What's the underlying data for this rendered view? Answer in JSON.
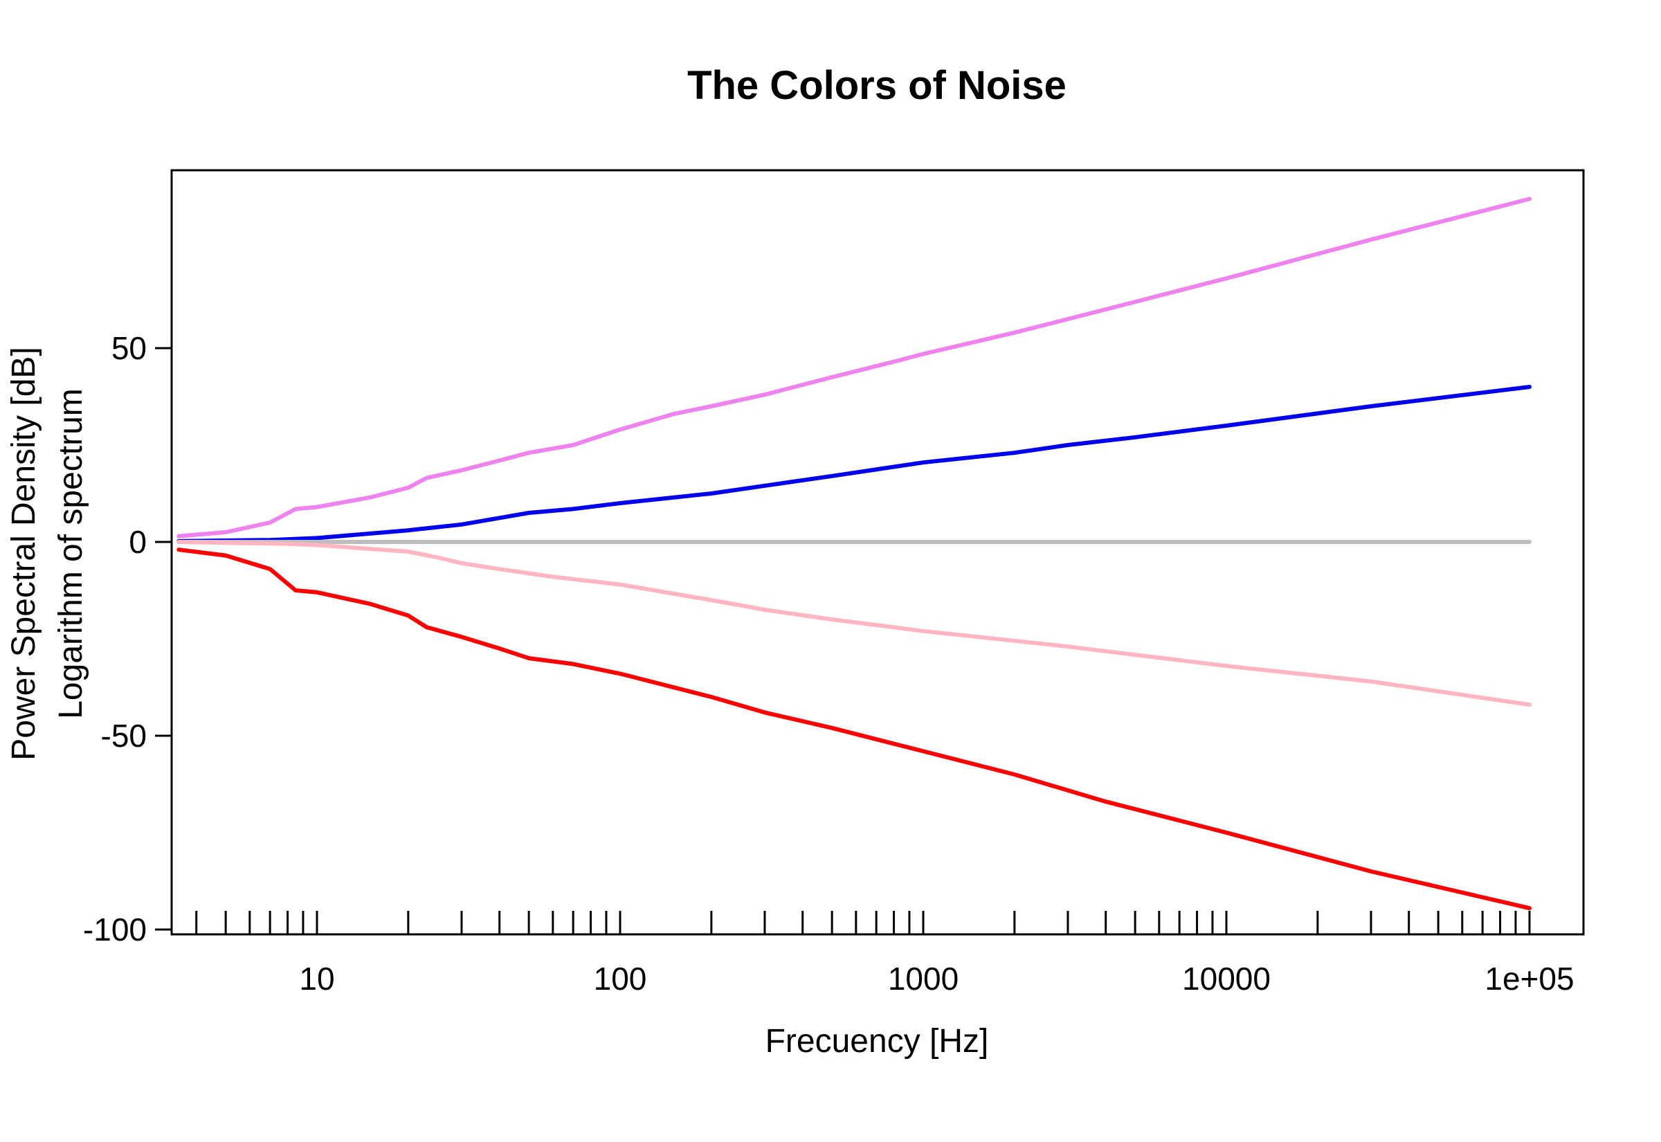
{
  "chart_data": {
    "type": "line",
    "title": "The Colors of Noise",
    "xlabel": "Frecuency [Hz]",
    "ylabel_line1": "Power Spectral Density [dB]",
    "ylabel_line2": "Logarithm of spectrum",
    "x_scale": "log",
    "xlim": [
      3.5,
      100000
    ],
    "ylim": [
      -100,
      95
    ],
    "x_tick_labels": [
      {
        "value": 10,
        "label": "10"
      },
      {
        "value": 100,
        "label": "100"
      },
      {
        "value": 1000,
        "label": "1000"
      },
      {
        "value": 10000,
        "label": "10000"
      },
      {
        "value": 100000,
        "label": "1e+05"
      }
    ],
    "y_tick_labels": [
      {
        "value": 50,
        "label": "50"
      },
      {
        "value": 0,
        "label": "0"
      },
      {
        "value": -50,
        "label": "-50"
      },
      {
        "value": -100,
        "label": "-100"
      }
    ],
    "minor_x_ticks": [
      4,
      5,
      6,
      7,
      8,
      9,
      20,
      30,
      40,
      50,
      60,
      70,
      80,
      90,
      200,
      300,
      400,
      500,
      600,
      700,
      800,
      900,
      2000,
      3000,
      4000,
      5000,
      6000,
      7000,
      8000,
      9000,
      20000,
      30000,
      40000,
      50000,
      60000,
      70000,
      80000,
      90000
    ],
    "grid": false,
    "legend": "none",
    "series": [
      {
        "color": "#ee82ee",
        "points": [
          [
            3.5,
            1.5
          ],
          [
            5,
            2.5
          ],
          [
            7,
            5
          ],
          [
            8.5,
            8.5
          ],
          [
            10,
            9
          ],
          [
            15,
            11.5
          ],
          [
            20,
            14
          ],
          [
            23,
            16.5
          ],
          [
            30,
            18.5
          ],
          [
            40,
            21
          ],
          [
            50,
            23
          ],
          [
            70,
            25
          ],
          [
            100,
            29
          ],
          [
            150,
            33
          ],
          [
            200,
            35
          ],
          [
            300,
            38
          ],
          [
            500,
            42.5
          ],
          [
            800,
            46.5
          ],
          [
            1000,
            48.5
          ],
          [
            2000,
            54
          ],
          [
            4000,
            60
          ],
          [
            10000,
            68
          ],
          [
            30000,
            78
          ],
          [
            100000,
            88.5
          ]
        ]
      },
      {
        "color": "#0000ee",
        "points": [
          [
            3.5,
            0.2
          ],
          [
            7,
            0.5
          ],
          [
            10,
            1
          ],
          [
            20,
            3
          ],
          [
            30,
            4.5
          ],
          [
            50,
            7.5
          ],
          [
            70,
            8.5
          ],
          [
            100,
            10
          ],
          [
            200,
            12.5
          ],
          [
            300,
            14.5
          ],
          [
            500,
            17
          ],
          [
            1000,
            20.5
          ],
          [
            2000,
            23
          ],
          [
            3000,
            25
          ],
          [
            5000,
            27
          ],
          [
            10000,
            30
          ],
          [
            30000,
            35
          ],
          [
            100000,
            40
          ]
        ]
      },
      {
        "color": "#bebebe",
        "points": [
          [
            3.5,
            0
          ],
          [
            100,
            0
          ],
          [
            1000,
            0
          ],
          [
            5000,
            0
          ],
          [
            10000,
            0
          ],
          [
            100000,
            0
          ]
        ]
      },
      {
        "color": "#ffb6c1",
        "points": [
          [
            3.5,
            0
          ],
          [
            8,
            -0.5
          ],
          [
            10,
            -0.8
          ],
          [
            20,
            -2.5
          ],
          [
            25,
            -4
          ],
          [
            30,
            -5.5
          ],
          [
            40,
            -7
          ],
          [
            60,
            -9
          ],
          [
            100,
            -11
          ],
          [
            200,
            -15
          ],
          [
            300,
            -17.5
          ],
          [
            500,
            -20
          ],
          [
            1000,
            -23
          ],
          [
            2000,
            -25.5
          ],
          [
            3000,
            -27
          ],
          [
            10000,
            -32
          ],
          [
            30000,
            -36
          ],
          [
            100000,
            -42
          ]
        ]
      },
      {
        "color": "#ff0000",
        "points": [
          [
            3.5,
            -2
          ],
          [
            5,
            -3.5
          ],
          [
            7,
            -7
          ],
          [
            8.5,
            -12.5
          ],
          [
            10,
            -13
          ],
          [
            15,
            -16
          ],
          [
            20,
            -19
          ],
          [
            23,
            -22
          ],
          [
            30,
            -24.5
          ],
          [
            40,
            -27.5
          ],
          [
            50,
            -30
          ],
          [
            70,
            -31.5
          ],
          [
            100,
            -34
          ],
          [
            200,
            -40
          ],
          [
            300,
            -44
          ],
          [
            500,
            -48
          ],
          [
            1000,
            -54
          ],
          [
            2000,
            -60
          ],
          [
            4000,
            -67
          ],
          [
            10000,
            -75
          ],
          [
            30000,
            -85
          ],
          [
            100000,
            -94.5
          ]
        ]
      }
    ]
  }
}
